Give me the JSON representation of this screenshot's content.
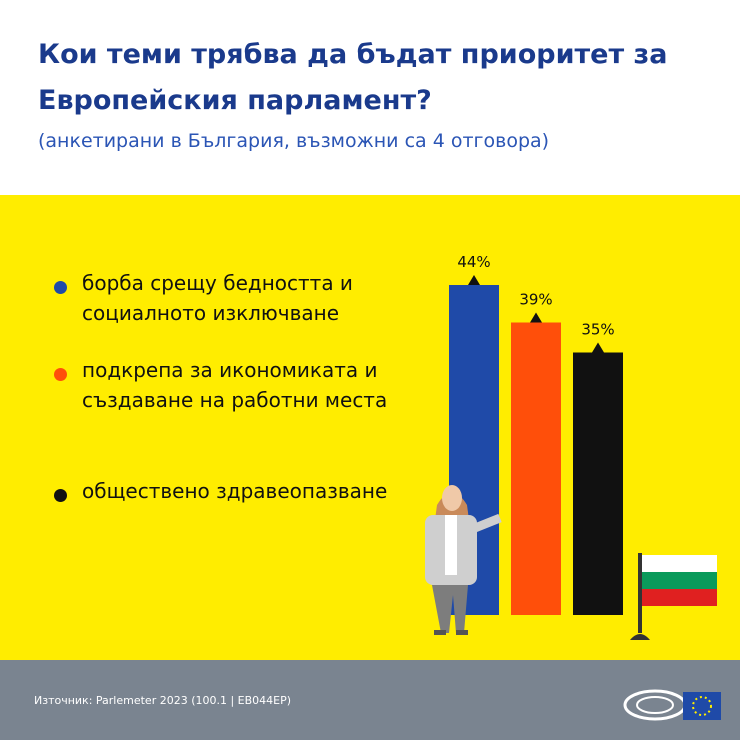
{
  "chart_data": {
    "type": "bar",
    "title": "Кои теми трябва да бъдат приоритет за Европейския парламент?",
    "subtitle": "(анкетирани в България, възможни са 4 отговора)",
    "categories": [
      "борба срещу бедността и социалното изключване",
      "подкрепа за икономиката и създаване на работни места",
      "обществено здравеопазване"
    ],
    "values": [
      44,
      39,
      35
    ],
    "value_labels": [
      "44%",
      "39%",
      "35%"
    ],
    "colors": [
      "#1f4aa8",
      "#ff4f0a",
      "#111111"
    ],
    "source": "Източник: Parlemeter 2023 (100.1 | EB044EP)"
  }
}
